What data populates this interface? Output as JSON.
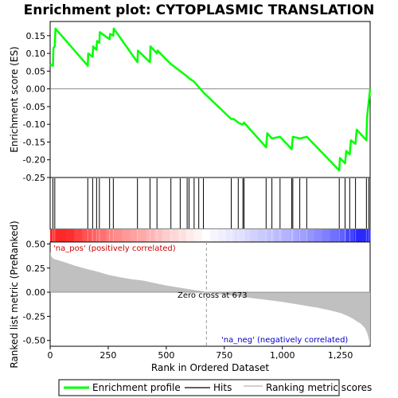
{
  "chart_data": {
    "type": "line",
    "title": "Enrichment plot: CYTOPLASMIC TRANSLATION",
    "top_panel": {
      "ylabel": "Enrichment score (ES)",
      "ylim": [
        -0.25,
        0.19
      ],
      "yticks": [
        -0.25,
        -0.2,
        -0.15,
        -0.1,
        -0.05,
        0.0,
        0.05,
        0.1,
        0.15
      ],
      "ytick_labels": [
        "-0.25",
        "-0.20",
        "-0.15",
        "-0.10",
        "-0.05",
        "0.00",
        "0.05",
        "0.10",
        "0.15"
      ],
      "series": [
        {
          "name": "Enrichment profile",
          "color": "#00ff00",
          "x": [
            0,
            12,
            14,
            20,
            23,
            162,
            164,
            183,
            185,
            200,
            202,
            212,
            214,
            256,
            258,
            272,
            274,
            376,
            378,
            430,
            432,
            460,
            462,
            520,
            560,
            590,
            598,
            620,
            640,
            660,
            780,
            790,
            810,
            825,
            830,
            835,
            930,
            935,
            955,
            990,
            1040,
            1045,
            1075,
            1105,
            1245,
            1248,
            1270,
            1275,
            1290,
            1295,
            1315,
            1320,
            1362,
            1365,
            1378
          ],
          "y": [
            0.07,
            0.065,
            0.115,
            0.12,
            0.17,
            0.065,
            0.1,
            0.09,
            0.12,
            0.11,
            0.135,
            0.13,
            0.16,
            0.14,
            0.155,
            0.15,
            0.17,
            0.075,
            0.108,
            0.075,
            0.12,
            0.1,
            0.108,
            0.07,
            0.05,
            0.035,
            0.03,
            0.02,
            0.005,
            -0.01,
            -0.085,
            -0.085,
            -0.095,
            -0.1,
            -0.1,
            -0.095,
            -0.165,
            -0.125,
            -0.14,
            -0.135,
            -0.17,
            -0.135,
            -0.14,
            -0.135,
            -0.23,
            -0.195,
            -0.21,
            -0.175,
            -0.185,
            -0.145,
            -0.155,
            -0.115,
            -0.145,
            -0.078,
            0.0
          ]
        }
      ]
    },
    "hits_panel": {
      "legend_name": "Hits",
      "hit_positions": [
        12,
        20,
        162,
        183,
        200,
        212,
        256,
        272,
        376,
        430,
        460,
        520,
        560,
        590,
        598,
        620,
        640,
        660,
        780,
        810,
        830,
        835,
        930,
        955,
        990,
        1040,
        1045,
        1075,
        1105,
        1245,
        1270,
        1290,
        1315,
        1362,
        1372
      ]
    },
    "bottom_panel": {
      "ylabel": "Ranked list metric (PreRanked)",
      "xlabel": "Rank in Ordered Dataset",
      "ylim": [
        -0.56,
        0.52
      ],
      "yticks": [
        -0.5,
        -0.25,
        0.0,
        0.25,
        0.5
      ],
      "ytick_labels": [
        "-0.50",
        "-0.25",
        "0.00",
        "0.25",
        "0.50"
      ],
      "xlim": [
        0,
        1378
      ],
      "xticks": [
        0,
        250,
        500,
        750,
        1000,
        1250
      ],
      "xtick_labels": [
        "0",
        "250",
        "500",
        "750",
        "1,000",
        "1,250"
      ],
      "series": [
        {
          "name": "Ranking metric scores",
          "color": "#c0c0c0",
          "x": [
            0,
            5,
            15,
            50,
            100,
            150,
            200,
            250,
            300,
            350,
            400,
            450,
            500,
            550,
            600,
            650,
            673,
            700,
            750,
            800,
            850,
            900,
            950,
            1000,
            1050,
            1100,
            1150,
            1200,
            1250,
            1280,
            1300,
            1320,
            1340,
            1355,
            1365,
            1372,
            1378
          ],
          "y": [
            0.42,
            0.37,
            0.345,
            0.32,
            0.28,
            0.245,
            0.215,
            0.18,
            0.155,
            0.135,
            0.12,
            0.095,
            0.07,
            0.05,
            0.03,
            0.012,
            0.0,
            -0.012,
            -0.025,
            -0.04,
            -0.055,
            -0.07,
            -0.085,
            -0.1,
            -0.12,
            -0.14,
            -0.16,
            -0.185,
            -0.215,
            -0.245,
            -0.27,
            -0.3,
            -0.33,
            -0.37,
            -0.42,
            -0.48,
            -0.55
          ]
        }
      ],
      "zero_cross_label": "Zero cross at 673",
      "zero_cross_x": 673,
      "pos_label": "'na_pos' (positively correlated)",
      "neg_label": "'na_neg' (negatively correlated)",
      "pos_label_color": "#cc0000",
      "neg_label_color": "#0000cc"
    },
    "legend": {
      "entries": [
        {
          "name": "Enrichment profile",
          "color": "#00ff00"
        },
        {
          "name": "Hits",
          "color": "#000000"
        },
        {
          "name": "Ranking metric scores",
          "color": "#c0c0c0"
        }
      ]
    }
  }
}
